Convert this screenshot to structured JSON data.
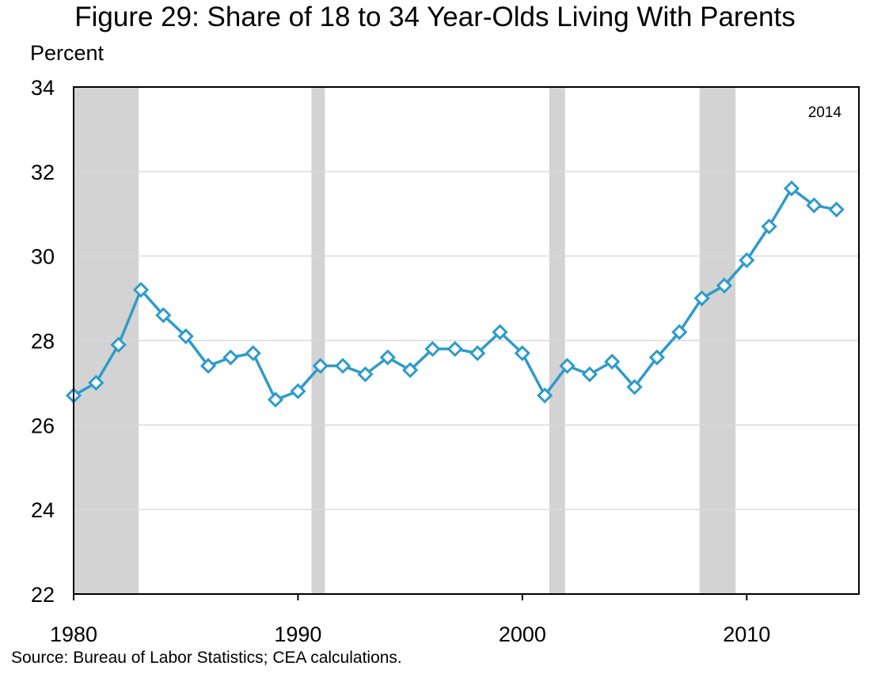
{
  "title": "Figure 29: Share of 18 to 34 Year-Olds Living With Parents",
  "ylabel": "Percent",
  "source": "Source: Bureau of Labor Statistics; CEA calculations.",
  "annotation": "2014",
  "colors": {
    "line": "#2E9BCB",
    "recession": "#D3D3D3",
    "grid": "#D9D9D9",
    "axis": "#000000"
  },
  "chart_data": {
    "type": "line",
    "title": "Figure 29: Share of 18 to 34 Year-Olds Living With Parents",
    "xlabel": "",
    "ylabel": "Percent",
    "xlim": [
      1980,
      2015
    ],
    "ylim": [
      22,
      34
    ],
    "x_ticks": [
      1980,
      1990,
      2000,
      2010
    ],
    "y_ticks": [
      22,
      24,
      26,
      28,
      30,
      32,
      34
    ],
    "grid": true,
    "recession_shading": [
      [
        1980.0,
        1982.9
      ],
      [
        1990.6,
        1991.2
      ],
      [
        2001.2,
        2001.9
      ],
      [
        2007.9,
        2009.5
      ]
    ],
    "series": [
      {
        "marker": "diamond",
        "x": [
          1980,
          1981,
          1982,
          1983,
          1984,
          1985,
          1986,
          1987,
          1988,
          1989,
          1990,
          1991,
          1992,
          1993,
          1994,
          1995,
          1996,
          1997,
          1998,
          1999,
          2000,
          2001,
          2002,
          2003,
          2004,
          2005,
          2006,
          2007,
          2008,
          2009,
          2010,
          2011,
          2012,
          2013,
          2014
        ],
        "values": [
          26.7,
          27.0,
          27.9,
          29.2,
          28.6,
          28.1,
          27.4,
          27.6,
          27.7,
          26.6,
          26.8,
          27.4,
          27.4,
          27.2,
          27.6,
          27.3,
          27.8,
          27.8,
          27.7,
          28.2,
          27.7,
          26.7,
          27.4,
          27.2,
          27.5,
          26.9,
          27.6,
          28.2,
          29.0,
          29.3,
          29.9,
          30.7,
          31.6,
          31.2,
          31.1
        ]
      }
    ]
  }
}
